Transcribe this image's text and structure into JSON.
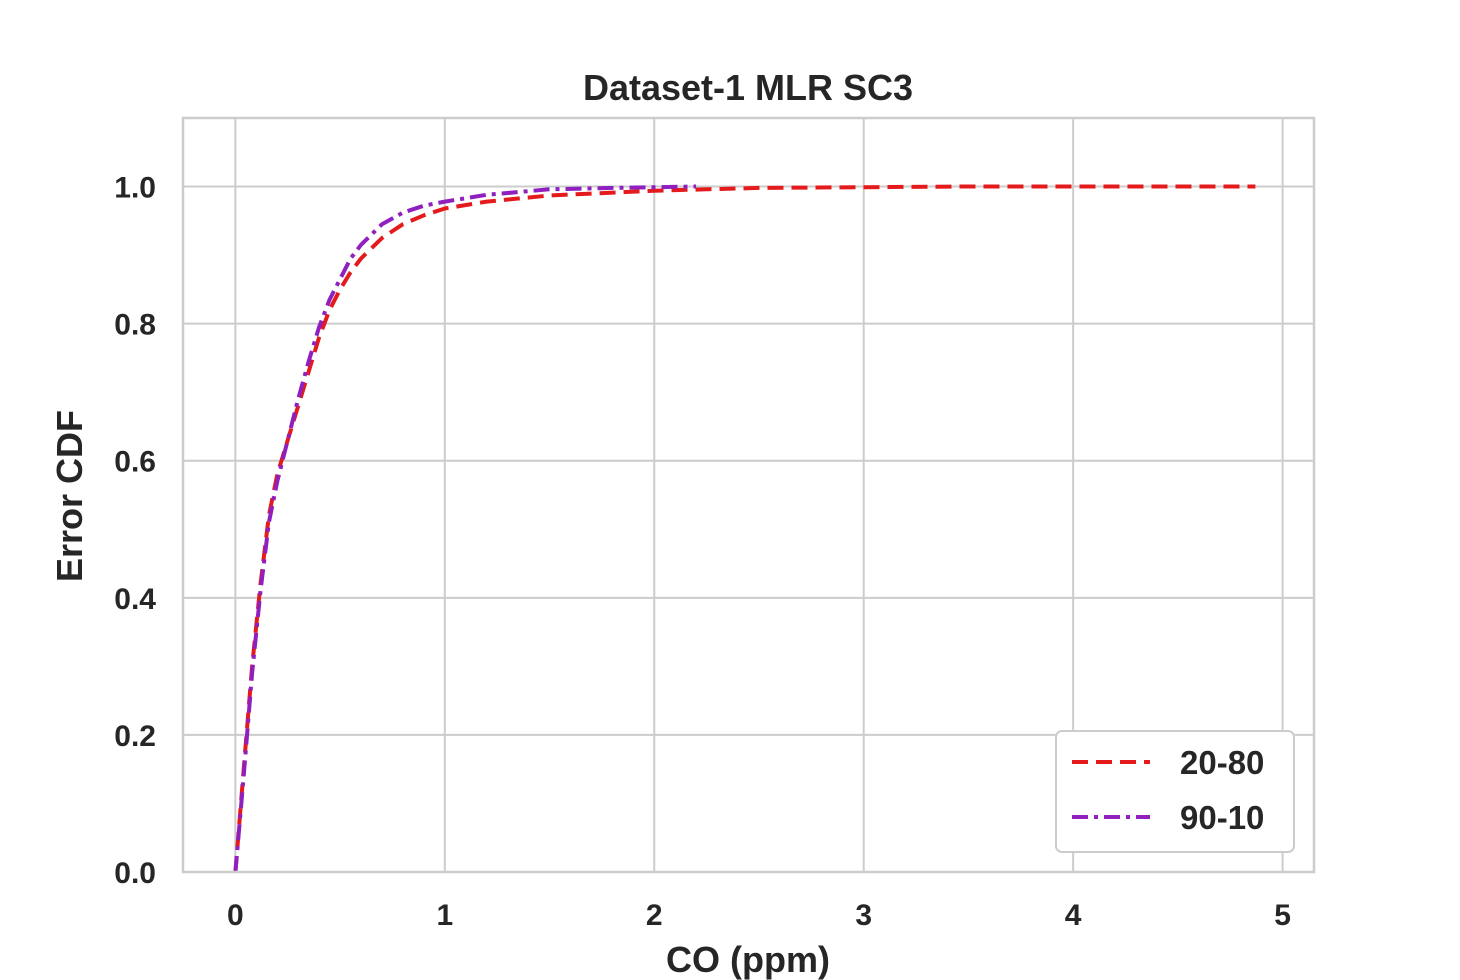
{
  "chart_data": {
    "type": "line",
    "title": "Dataset-1 MLR SC3",
    "xlabel": "CO (ppm)",
    "ylabel": "Error CDF",
    "xlim": [
      -0.25,
      5.15
    ],
    "ylim": [
      0,
      1.1
    ],
    "xticks": [
      0,
      1,
      2,
      3,
      4,
      5
    ],
    "xtick_labels": [
      "0",
      "1",
      "2",
      "3",
      "4",
      "5"
    ],
    "yticks": [
      0.0,
      0.2,
      0.4,
      0.6,
      0.8,
      1.0
    ],
    "ytick_labels": [
      "0.0",
      "0.2",
      "0.4",
      "0.6",
      "0.8",
      "1.0"
    ],
    "grid": true,
    "legend_position": "bottom-right",
    "series": [
      {
        "name": "20-80",
        "color": "#e41a1c",
        "linestyle": "dashed",
        "x": [
          0.0,
          0.04,
          0.08,
          0.12,
          0.16,
          0.2,
          0.25,
          0.3,
          0.35,
          0.4,
          0.45,
          0.5,
          0.55,
          0.6,
          0.7,
          0.8,
          0.9,
          1.0,
          1.2,
          1.5,
          2.0,
          2.5,
          3.0,
          3.5,
          4.0,
          4.5,
          4.87
        ],
        "y": [
          0.0,
          0.15,
          0.3,
          0.42,
          0.52,
          0.58,
          0.63,
          0.68,
          0.73,
          0.78,
          0.82,
          0.85,
          0.875,
          0.895,
          0.925,
          0.945,
          0.958,
          0.968,
          0.978,
          0.987,
          0.994,
          0.998,
          0.999,
          1.0,
          1.0,
          1.0,
          1.0
        ]
      },
      {
        "name": "90-10",
        "color": "#8f1fbf",
        "linestyle": "dashdot",
        "x": [
          0.0,
          0.04,
          0.08,
          0.12,
          0.16,
          0.2,
          0.25,
          0.3,
          0.35,
          0.4,
          0.45,
          0.5,
          0.55,
          0.6,
          0.7,
          0.8,
          0.9,
          1.0,
          1.2,
          1.5,
          1.8,
          2.0,
          2.2
        ],
        "y": [
          0.0,
          0.14,
          0.29,
          0.41,
          0.51,
          0.57,
          0.63,
          0.69,
          0.745,
          0.795,
          0.835,
          0.865,
          0.895,
          0.915,
          0.945,
          0.962,
          0.972,
          0.978,
          0.988,
          0.996,
          0.998,
          0.999,
          1.0
        ]
      }
    ]
  }
}
